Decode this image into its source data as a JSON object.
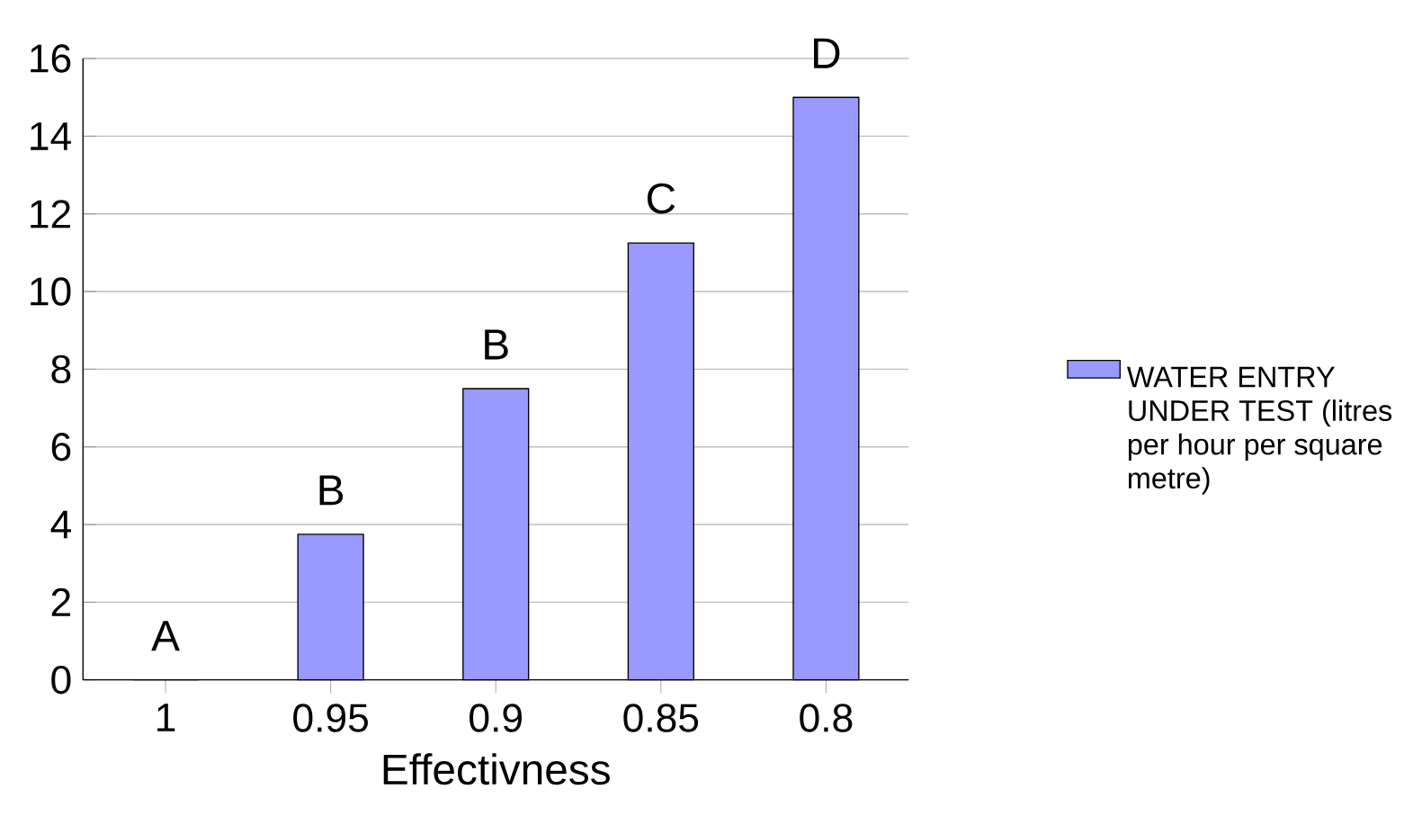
{
  "chart_data": {
    "type": "bar",
    "xlabel": "Effectivness",
    "categories": [
      "1",
      "0.95",
      "0.9",
      "0.85",
      "0.8"
    ],
    "series": [
      {
        "name": "WATER ENTRY UNDER TEST (litres per hour per square metre)",
        "color": "#9999ff",
        "values": [
          0,
          3.75,
          7.5,
          11.25,
          15
        ]
      }
    ],
    "ylim": [
      0,
      16
    ],
    "yticks": [
      0,
      2,
      4,
      6,
      8,
      10,
      12,
      14,
      16
    ],
    "grid": "y",
    "legend": "right",
    "annotations": [
      {
        "text": "A",
        "x": "1",
        "y": 0
      },
      {
        "text": "B",
        "x": "0.95",
        "y": 3.75
      },
      {
        "text": "B",
        "x": "0.9",
        "y": 7.5
      },
      {
        "text": "C",
        "x": "0.85",
        "y": 11.25
      },
      {
        "text": "D",
        "x": "0.8",
        "y": 15
      }
    ]
  }
}
